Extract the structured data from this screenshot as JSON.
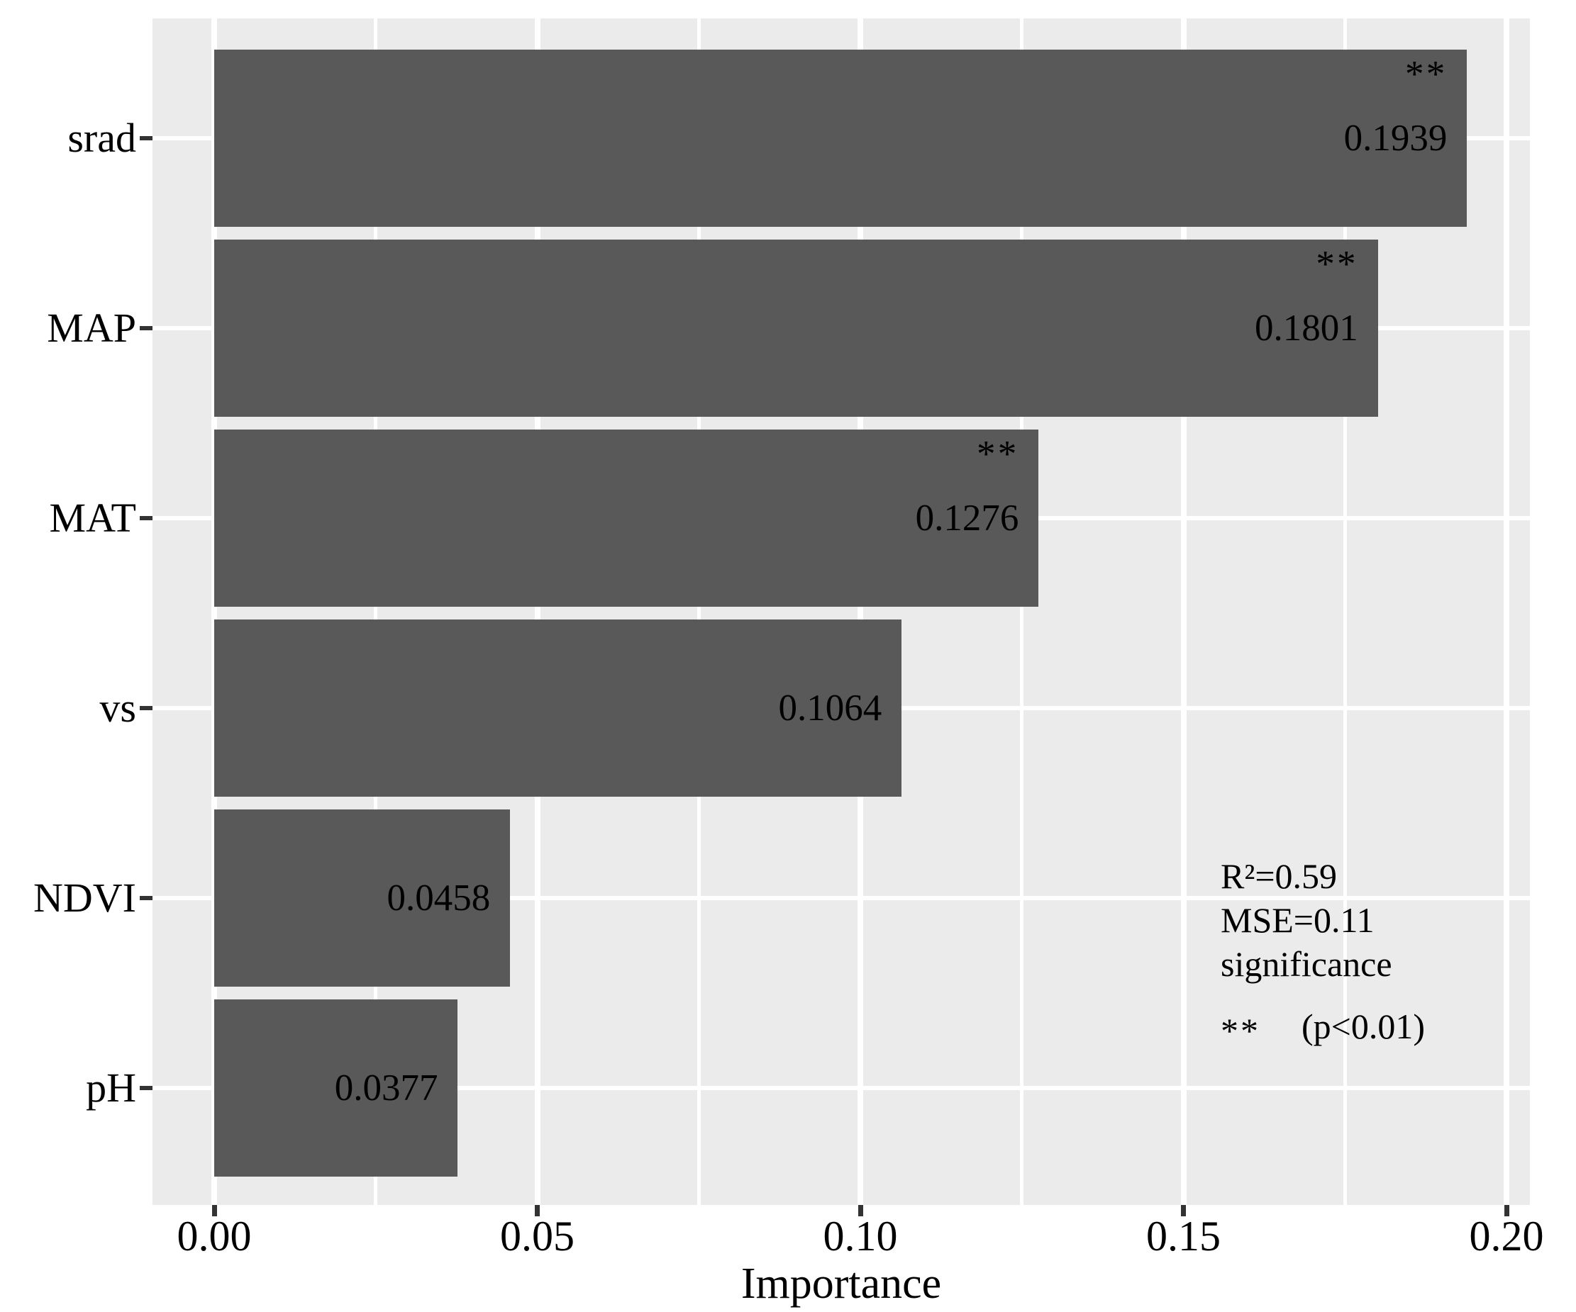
{
  "chart_data": {
    "type": "bar",
    "orientation": "horizontal",
    "title": "",
    "xlabel": "Importance",
    "ylabel": "",
    "categories": [
      "srad",
      "MAP",
      "MAT",
      "vs",
      "NDVI",
      "pH"
    ],
    "values": [
      0.1939,
      0.1801,
      0.1276,
      0.1064,
      0.0458,
      0.0377
    ],
    "value_labels": [
      "0.1939",
      "0.1801",
      "0.1276",
      "0.1064",
      "0.0458",
      "0.0377"
    ],
    "significance_marks": [
      "**",
      "**",
      "**",
      "",
      "",
      ""
    ],
    "xlim": [
      0,
      0.2
    ],
    "x_ticks": [
      {
        "value": 0.0,
        "label": "0.00"
      },
      {
        "value": 0.05,
        "label": "0.05"
      },
      {
        "value": 0.1,
        "label": "0.10"
      },
      {
        "value": 0.15,
        "label": "0.15"
      },
      {
        "value": 0.2,
        "label": "0.20"
      }
    ],
    "x_minor_ticks": [
      0.025,
      0.075,
      0.125,
      0.175
    ],
    "grid": "white major and minor gridlines on gray panel",
    "legend_position": "none",
    "annotation": {
      "r2": "R²=0.59",
      "mse": "MSE=0.11",
      "sig_label": "significance",
      "sig_symbol": "**",
      "sig_value": "(p<0.01)"
    },
    "colors": {
      "bar": "#595959",
      "panel_background": "#ebebeb",
      "gridline": "#ffffff",
      "tick_mark": "#333333",
      "text": "#000000",
      "figure_background": "#ffffff"
    }
  }
}
